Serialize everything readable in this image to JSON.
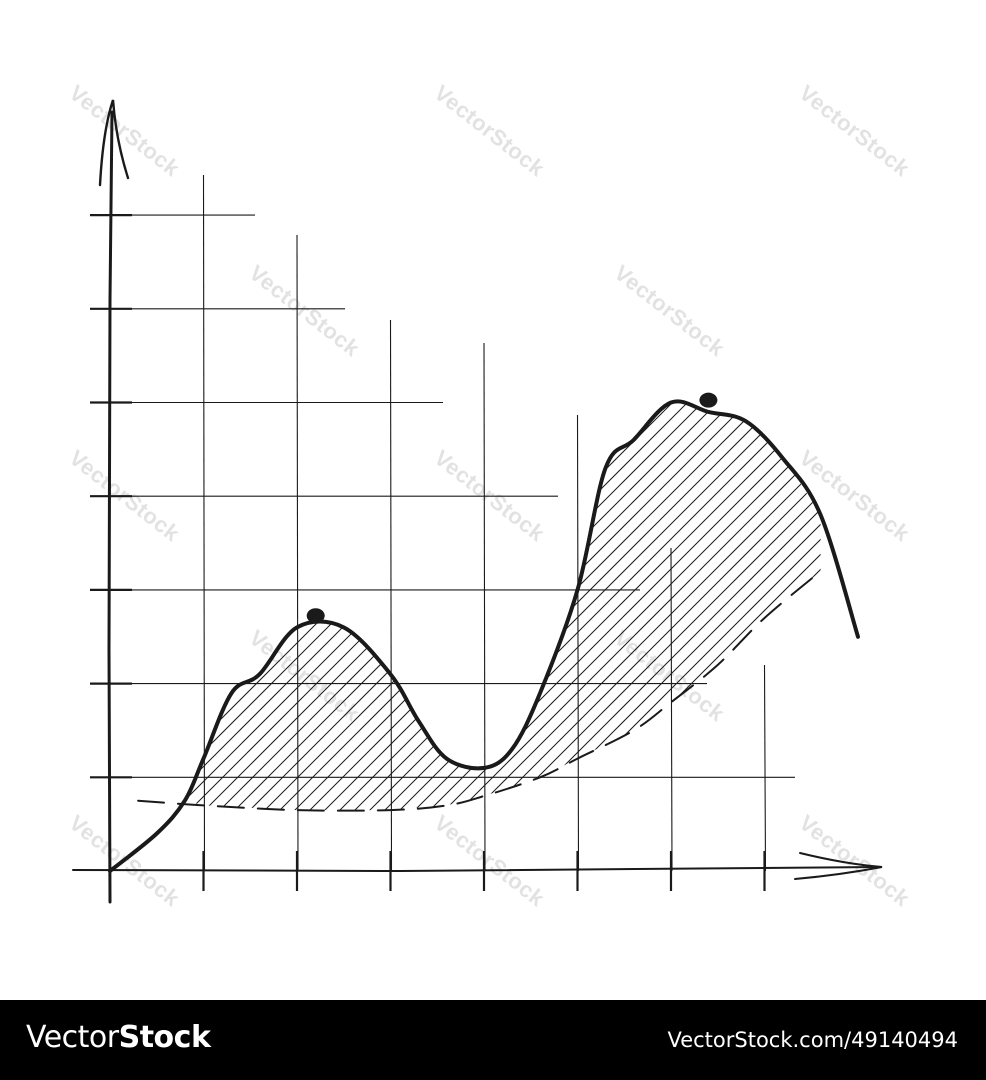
{
  "watermark": {
    "text": "VectorStock"
  },
  "footer": {
    "brand_main": "Vector",
    "brand_bold": "Stock",
    "image_id": "VectorStock.com/49140494"
  },
  "colors": {
    "ink": "#1a1a1a",
    "background": "#ffffff",
    "footer_bg": "#000000",
    "footer_text": "#ffffff",
    "watermark": "#d9d9d9"
  },
  "chart_data": {
    "type": "line",
    "style": "hand-drawn sketch",
    "title": "",
    "xlabel": "",
    "ylabel": "",
    "xlim": [
      0,
      8.5
    ],
    "ylim": [
      0,
      7.8
    ],
    "x_ticks": [
      1,
      2,
      3,
      4,
      5,
      6,
      7
    ],
    "y_ticks": [
      1,
      2,
      3,
      4,
      5,
      6,
      7
    ],
    "grid": true,
    "legend": "none",
    "series": [
      {
        "role": "main curve",
        "line": "solid",
        "x": [
          0,
          0.5,
          0.8,
          1.0,
          1.3,
          1.6,
          2.0,
          2.5,
          3.0,
          3.3,
          3.6,
          4.0,
          4.3,
          4.6,
          5.0,
          5.3,
          5.6,
          6.0,
          6.4,
          6.8,
          7.2,
          7.6,
          8.0
        ],
        "y": [
          0.0,
          0.4,
          0.75,
          1.2,
          1.9,
          2.1,
          2.6,
          2.6,
          2.1,
          1.6,
          1.2,
          1.1,
          1.3,
          1.9,
          3.0,
          4.3,
          4.6,
          5.0,
          4.9,
          4.8,
          4.4,
          3.8,
          2.5
        ]
      },
      {
        "role": "lower bound",
        "line": "dashed",
        "x": [
          0.3,
          1.0,
          2.0,
          3.0,
          3.6,
          4.0,
          4.6,
          5.0,
          5.6,
          6.0,
          6.5,
          7.0,
          7.6
        ],
        "y": [
          0.75,
          0.7,
          0.65,
          0.65,
          0.7,
          0.8,
          1.0,
          1.2,
          1.5,
          1.8,
          2.2,
          2.7,
          3.2
        ]
      }
    ],
    "markers": [
      {
        "x": 2.2,
        "y": 2.65
      },
      {
        "x": 6.4,
        "y": 4.95
      }
    ],
    "shaded_region": "hatched area between main curve and lower bound"
  }
}
